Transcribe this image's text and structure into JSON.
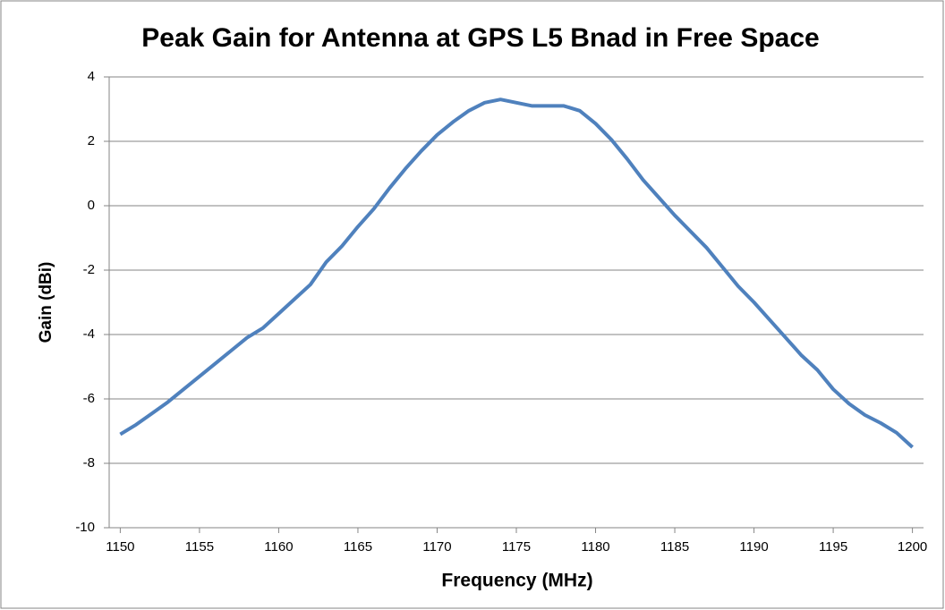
{
  "chart_data": {
    "type": "line",
    "title": "Peak Gain for Antenna at GPS L5 Bnad in Free Space",
    "x_label": "Frequency  (MHz)",
    "y_label": "Gain (dBi)",
    "x": [
      1150,
      1151,
      1152,
      1153,
      1154,
      1155,
      1156,
      1157,
      1158,
      1159,
      1160,
      1161,
      1162,
      1163,
      1164,
      1165,
      1166,
      1167,
      1168,
      1169,
      1170,
      1171,
      1172,
      1173,
      1174,
      1175,
      1176,
      1177,
      1178,
      1179,
      1180,
      1181,
      1182,
      1183,
      1184,
      1185,
      1186,
      1187,
      1188,
      1189,
      1190,
      1191,
      1192,
      1193,
      1194,
      1195,
      1196,
      1197,
      1198,
      1199,
      1200
    ],
    "values": [
      -7.1,
      -6.8,
      -6.45,
      -6.1,
      -5.7,
      -5.3,
      -4.9,
      -4.5,
      -4.1,
      -3.8,
      -3.35,
      -2.9,
      -2.45,
      -1.75,
      -1.25,
      -0.65,
      -0.1,
      0.55,
      1.15,
      1.7,
      2.2,
      2.6,
      2.95,
      3.2,
      3.3,
      3.2,
      3.1,
      3.1,
      3.1,
      2.95,
      2.55,
      2.05,
      1.45,
      0.8,
      0.25,
      -0.3,
      -0.8,
      -1.3,
      -1.9,
      -2.5,
      -3.0,
      -3.55,
      -4.1,
      -4.65,
      -5.1,
      -5.7,
      -6.15,
      -6.5,
      -6.75,
      -7.05,
      -7.5
    ],
    "color": "#4f81bd",
    "xlim": [
      1149.3,
      1200.7
    ],
    "xticks": [
      1150,
      1155,
      1160,
      1165,
      1170,
      1175,
      1180,
      1185,
      1190,
      1195,
      1200
    ],
    "ylim": [
      -10,
      4
    ],
    "yticks": [
      -10,
      -8,
      -6,
      -4,
      -2,
      0,
      2,
      4
    ],
    "grid": true
  }
}
